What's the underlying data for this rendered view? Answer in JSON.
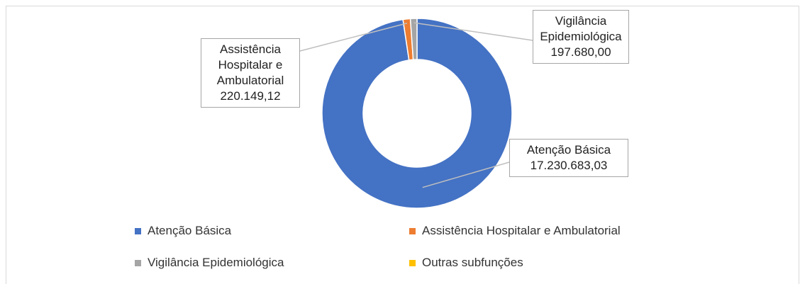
{
  "chart_data": {
    "type": "donut",
    "categories": [
      "Atenção Básica",
      "Assistência Hospitalar e Ambulatorial",
      "Vigilância Epidemiológica",
      "Outras subfunções"
    ],
    "values": [
      17230683.03,
      220149.12,
      197680.0,
      0
    ],
    "value_labels": [
      "17.230.683,03",
      "220.149,12",
      "197.680,00",
      null
    ],
    "colors": [
      "#4472c4",
      "#ed7d31",
      "#a5a5a5",
      "#ffc000"
    ],
    "legend": "bottom"
  }
}
